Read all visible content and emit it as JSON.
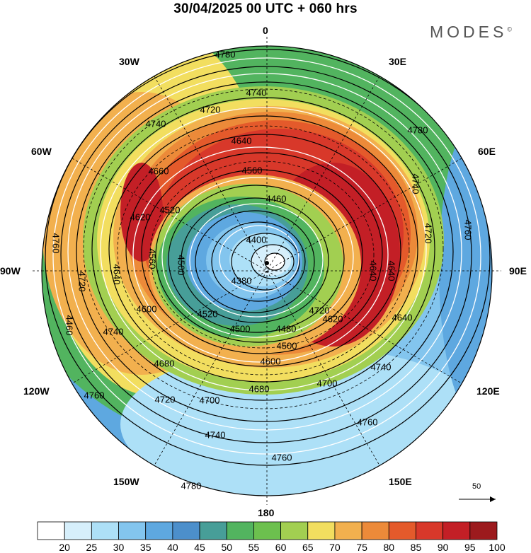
{
  "title": "30/04/2025  00 UTC  + 060 hrs",
  "brand": "MODES",
  "brand_mark": "©",
  "longitude_labels": {
    "top": "0",
    "top_left": "30W",
    "top_right": "30E",
    "upper_left": "60W",
    "upper_right": "60E",
    "left": "90W",
    "right": "90E",
    "lower_left": "120W",
    "lower_right": "120E",
    "bottom_left": "150W",
    "bottom_right": "150E",
    "bottom": "180"
  },
  "reference_vector": {
    "label": "50"
  },
  "contour_labels": [
    "4780",
    "4740",
    "4720",
    "4740",
    "4780",
    "4640",
    "4660",
    "4560",
    "4460",
    "4520",
    "4620",
    "4740",
    "4720",
    "4400",
    "4760",
    "4760",
    "4720",
    "4640",
    "4500",
    "4560",
    "4380",
    "4640",
    "4640",
    "4500",
    "4600",
    "4520",
    "4480",
    "4460",
    "4720",
    "4740",
    "4500",
    "4680",
    "4620",
    "4640",
    "4600",
    "4700",
    "4740",
    "4760",
    "4680",
    "4720",
    "4700",
    "4740",
    "4760",
    "4760",
    "4780"
  ],
  "legend": {
    "colors": [
      "#ffffff",
      "#d6effb",
      "#ade0f7",
      "#83c5ee",
      "#5ea8e0",
      "#4c8fcb",
      "#479e98",
      "#52b45f",
      "#6cc04e",
      "#a2cf51",
      "#f2de5f",
      "#f2b04e",
      "#ec8a39",
      "#e45a2b",
      "#d8382a",
      "#c31f26",
      "#9c1a1d"
    ],
    "labels": [
      "20",
      "25",
      "30",
      "35",
      "40",
      "45",
      "50",
      "55",
      "60",
      "65",
      "70",
      "75",
      "80",
      "85",
      "90",
      "95",
      "100"
    ]
  }
}
